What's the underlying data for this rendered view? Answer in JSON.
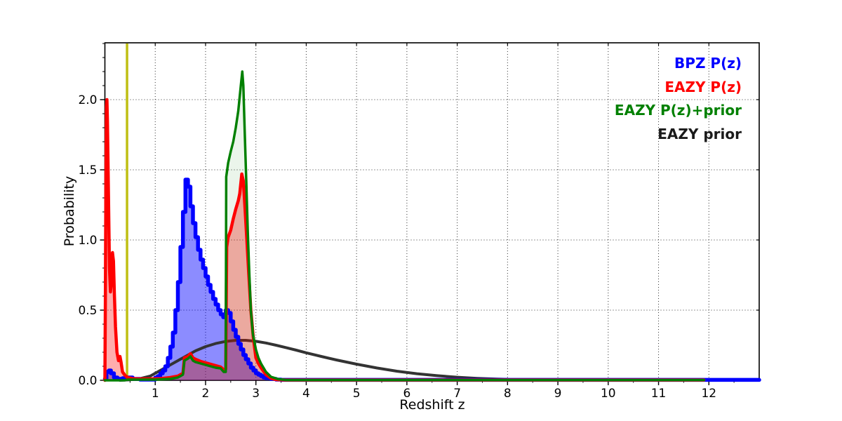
{
  "figure": {
    "background": "#ffffff"
  },
  "legend": {
    "position": "upper right",
    "items": [
      {
        "label": "BPZ P(z)",
        "color": "#0000ff"
      },
      {
        "label": "EAZY P(z)",
        "color": "#ff0000"
      },
      {
        "label": "EAZY P(z)+prior",
        "color": "#008000"
      },
      {
        "label": "EAZY prior",
        "color": "#1a1a1a"
      }
    ]
  },
  "chart_data": {
    "type": "line",
    "title": "",
    "xlabel": "Redshift z",
    "ylabel": "Probability",
    "xlim": [
      0,
      13
    ],
    "ylim": [
      0,
      2.405
    ],
    "grid": "dotted",
    "grid_color": "#333333",
    "x_major_ticks": [
      1,
      2,
      3,
      4,
      5,
      6,
      7,
      8,
      9,
      10,
      11,
      12
    ],
    "x_tick_labels": [
      "1",
      "2",
      "3",
      "4",
      "5",
      "6",
      "7",
      "8",
      "9",
      "10",
      "11",
      "12"
    ],
    "x_minor_step": 0.5,
    "y_major_ticks": [
      0.0,
      0.5,
      1.0,
      1.5,
      2.0
    ],
    "y_tick_labels": [
      "0.0",
      "0.5",
      "1.0",
      "1.5",
      "2.0"
    ],
    "y_minor_step": 0.1,
    "marker_line": {
      "x": 0.44,
      "color": "#bfbf13",
      "width": 3.5,
      "order": 5
    },
    "series": [
      {
        "name": "BPZ P(z)",
        "color": "#0000ff",
        "width": 5.5,
        "fill": "rgba(0,0,255,0.45)",
        "step": true,
        "fill_order": 1,
        "line_order": 6,
        "points": [
          [
            0,
            0.01
          ],
          [
            0.03,
            0.06
          ],
          [
            0.08,
            0.07
          ],
          [
            0.12,
            0.05
          ],
          [
            0.18,
            0.02
          ],
          [
            0.25,
            0.01
          ],
          [
            0.35,
            0.015
          ],
          [
            0.45,
            0.02
          ],
          [
            0.55,
            0.01
          ],
          [
            0.7,
            0.005
          ],
          [
            0.85,
            0.005
          ],
          [
            1,
            0.02
          ],
          [
            1.05,
            0.03
          ],
          [
            1.1,
            0.05
          ],
          [
            1.15,
            0.07
          ],
          [
            1.2,
            0.1
          ],
          [
            1.25,
            0.16
          ],
          [
            1.3,
            0.24
          ],
          [
            1.35,
            0.34
          ],
          [
            1.4,
            0.5
          ],
          [
            1.45,
            0.7
          ],
          [
            1.5,
            0.95
          ],
          [
            1.55,
            1.2
          ],
          [
            1.6,
            1.43
          ],
          [
            1.65,
            1.38
          ],
          [
            1.7,
            1.24
          ],
          [
            1.75,
            1.12
          ],
          [
            1.8,
            1.02
          ],
          [
            1.85,
            0.93
          ],
          [
            1.9,
            0.86
          ],
          [
            1.95,
            0.8
          ],
          [
            2,
            0.74
          ],
          [
            2.05,
            0.68
          ],
          [
            2.1,
            0.63
          ],
          [
            2.15,
            0.58
          ],
          [
            2.2,
            0.54
          ],
          [
            2.25,
            0.5
          ],
          [
            2.3,
            0.47
          ],
          [
            2.35,
            0.45
          ],
          [
            2.4,
            0.5
          ],
          [
            2.45,
            0.48
          ],
          [
            2.5,
            0.42
          ],
          [
            2.55,
            0.36
          ],
          [
            2.6,
            0.31
          ],
          [
            2.65,
            0.26
          ],
          [
            2.7,
            0.22
          ],
          [
            2.75,
            0.18
          ],
          [
            2.8,
            0.15
          ],
          [
            2.85,
            0.12
          ],
          [
            2.9,
            0.09
          ],
          [
            2.95,
            0.07
          ],
          [
            3,
            0.05
          ],
          [
            3.05,
            0.04
          ],
          [
            3.1,
            0.03
          ],
          [
            3.15,
            0.02
          ],
          [
            3.2,
            0.015
          ],
          [
            3.3,
            0.01
          ],
          [
            3.4,
            0.005
          ],
          [
            3.5,
            0.003
          ],
          [
            13,
            0.003
          ]
        ]
      },
      {
        "name": "EAZY P(z)",
        "color": "#ff0000",
        "width": 4.5,
        "fill": "rgba(255,0,0,0.32)",
        "step": false,
        "fill_order": 3,
        "line_order": 7,
        "points": [
          [
            0,
            0
          ],
          [
            0.01,
            0.6
          ],
          [
            0.02,
            1.4
          ],
          [
            0.03,
            1.95
          ],
          [
            0.04,
            2
          ],
          [
            0.05,
            1.85
          ],
          [
            0.07,
            1.35
          ],
          [
            0.09,
            0.8
          ],
          [
            0.11,
            0.63
          ],
          [
            0.13,
            0.7
          ],
          [
            0.15,
            0.91
          ],
          [
            0.17,
            0.85
          ],
          [
            0.19,
            0.6
          ],
          [
            0.21,
            0.38
          ],
          [
            0.24,
            0.2
          ],
          [
            0.27,
            0.14
          ],
          [
            0.3,
            0.17
          ],
          [
            0.32,
            0.13
          ],
          [
            0.35,
            0.06
          ],
          [
            0.4,
            0.035
          ],
          [
            0.45,
            0.02
          ],
          [
            0.55,
            0.012
          ],
          [
            0.7,
            0.01
          ],
          [
            0.9,
            0.01
          ],
          [
            1.1,
            0.012
          ],
          [
            1.3,
            0.02
          ],
          [
            1.45,
            0.03
          ],
          [
            1.55,
            0.05
          ],
          [
            1.58,
            0.16
          ],
          [
            1.65,
            0.17
          ],
          [
            1.7,
            0.19
          ],
          [
            1.75,
            0.16
          ],
          [
            1.8,
            0.15
          ],
          [
            1.9,
            0.135
          ],
          [
            2,
            0.125
          ],
          [
            2.1,
            0.115
          ],
          [
            2.2,
            0.105
          ],
          [
            2.3,
            0.095
          ],
          [
            2.36,
            0.075
          ],
          [
            2.4,
            0.08
          ],
          [
            2.42,
            0.95
          ],
          [
            2.45,
            1.02
          ],
          [
            2.5,
            1.07
          ],
          [
            2.55,
            1.15
          ],
          [
            2.6,
            1.22
          ],
          [
            2.65,
            1.28
          ],
          [
            2.68,
            1.33
          ],
          [
            2.72,
            1.47
          ],
          [
            2.75,
            1.42
          ],
          [
            2.78,
            1.25
          ],
          [
            2.82,
            1
          ],
          [
            2.86,
            0.75
          ],
          [
            2.9,
            0.5
          ],
          [
            2.95,
            0.3
          ],
          [
            3,
            0.16
          ],
          [
            3.05,
            0.12
          ],
          [
            3.1,
            0.09
          ],
          [
            3.2,
            0.04
          ],
          [
            3.3,
            0.015
          ],
          [
            3.4,
            0.005
          ],
          [
            3.6,
            0.002
          ],
          [
            11.9,
            0.002
          ]
        ]
      },
      {
        "name": "EAZY P(z)+prior",
        "color": "#008000",
        "width": 3.5,
        "fill": "rgba(0,128,0,0.08)",
        "step": false,
        "fill_order": 4,
        "line_order": 8,
        "points": [
          [
            0,
            0
          ],
          [
            0.4,
            0
          ],
          [
            0.45,
            0.005
          ],
          [
            1,
            0.005
          ],
          [
            1.3,
            0.01
          ],
          [
            1.45,
            0.02
          ],
          [
            1.55,
            0.04
          ],
          [
            1.58,
            0.14
          ],
          [
            1.65,
            0.155
          ],
          [
            1.7,
            0.17
          ],
          [
            1.75,
            0.14
          ],
          [
            1.8,
            0.13
          ],
          [
            1.9,
            0.12
          ],
          [
            2,
            0.11
          ],
          [
            2.1,
            0.1
          ],
          [
            2.2,
            0.09
          ],
          [
            2.3,
            0.085
          ],
          [
            2.36,
            0.06
          ],
          [
            2.4,
            0.06
          ],
          [
            2.41,
            1.45
          ],
          [
            2.45,
            1.55
          ],
          [
            2.5,
            1.63
          ],
          [
            2.55,
            1.7
          ],
          [
            2.6,
            1.8
          ],
          [
            2.65,
            1.92
          ],
          [
            2.7,
            2.1
          ],
          [
            2.73,
            2.2
          ],
          [
            2.75,
            2.1
          ],
          [
            2.78,
            1.75
          ],
          [
            2.81,
            1.4
          ],
          [
            2.84,
            1.05
          ],
          [
            2.87,
            0.75
          ],
          [
            2.9,
            0.5
          ],
          [
            2.94,
            0.33
          ],
          [
            3,
            0.22
          ],
          [
            3.05,
            0.16
          ],
          [
            3.1,
            0.12
          ],
          [
            3.2,
            0.06
          ],
          [
            3.3,
            0.025
          ],
          [
            3.45,
            0.008
          ],
          [
            3.6,
            0.002
          ],
          [
            11.9,
            0.002
          ]
        ]
      },
      {
        "name": "EAZY prior",
        "color": "#333333",
        "width": 4,
        "fill": "none",
        "step": false,
        "fill_order": 0,
        "line_order": 2,
        "points": [
          [
            0.3,
            0
          ],
          [
            0.5,
            0.004
          ],
          [
            0.7,
            0.012
          ],
          [
            0.9,
            0.03
          ],
          [
            1,
            0.05
          ],
          [
            1.2,
            0.09
          ],
          [
            1.4,
            0.13
          ],
          [
            1.6,
            0.17
          ],
          [
            1.8,
            0.21
          ],
          [
            2,
            0.24
          ],
          [
            2.2,
            0.262
          ],
          [
            2.4,
            0.277
          ],
          [
            2.6,
            0.285
          ],
          [
            2.8,
            0.285
          ],
          [
            3,
            0.278
          ],
          [
            3.2,
            0.266
          ],
          [
            3.4,
            0.25
          ],
          [
            3.6,
            0.233
          ],
          [
            3.8,
            0.215
          ],
          [
            4,
            0.196
          ],
          [
            4.3,
            0.17
          ],
          [
            4.6,
            0.145
          ],
          [
            5,
            0.115
          ],
          [
            5.4,
            0.088
          ],
          [
            5.8,
            0.065
          ],
          [
            6.2,
            0.047
          ],
          [
            6.6,
            0.033
          ],
          [
            7,
            0.022
          ],
          [
            7.4,
            0.014
          ],
          [
            7.8,
            0.009
          ],
          [
            8,
            0.007
          ]
        ]
      }
    ]
  }
}
